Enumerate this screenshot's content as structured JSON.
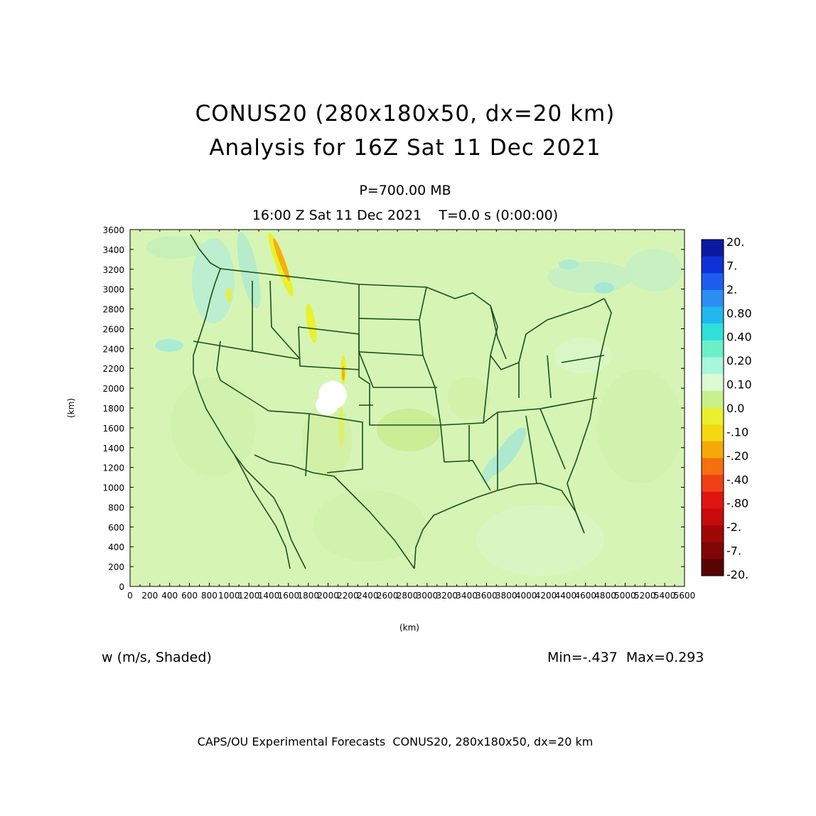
{
  "header": {
    "title_line1": "CONUS20 (280x180x50, dx=20 km)",
    "title_line2": "Analysis for 16Z Sat 11 Dec 2021",
    "level": "P=700.00 MB",
    "time": "16:00 Z Sat 11 Dec 2021    T=0.0 s (0:00:00)"
  },
  "field_label": "w (m/s, Shaded)",
  "minmax_label": "Min=-.437  Max=0.293",
  "footer": "CAPS/OU Experimental Forecasts  CONUS20, 280x180x50, dx=20 km",
  "chart_data": {
    "type": "heatmap",
    "variable": "w (m/s)",
    "xlabel": "(km)",
    "ylabel": "(km)",
    "xlim": [
      0,
      5600
    ],
    "ylim": [
      0,
      3600
    ],
    "x_ticks": [
      0,
      200,
      400,
      600,
      800,
      1000,
      1200,
      1400,
      1600,
      1800,
      2000,
      2200,
      2400,
      2600,
      2800,
      3000,
      3200,
      3400,
      3600,
      3800,
      4000,
      4200,
      4400,
      4600,
      4800,
      5000,
      5200,
      5400,
      5600
    ],
    "x_tick_labels": [
      "0",
      "200",
      "400",
      "600",
      "800",
      "1000",
      "1200",
      "1400",
      "1600",
      "1800",
      "2000",
      "2200",
      "2400",
      "2600",
      "2800",
      "3000",
      "3200",
      "3400",
      "3600",
      "3800",
      "4000",
      "4200",
      "4400",
      "4600",
      "4800",
      "5000",
      "5200",
      "5400",
      "5600"
    ],
    "y_ticks": [
      0,
      200,
      400,
      600,
      800,
      1000,
      1200,
      1400,
      1600,
      1800,
      2000,
      2200,
      2400,
      2600,
      2800,
      3000,
      3200,
      3400,
      3600
    ],
    "y_tick_labels": [
      "0",
      "200",
      "400",
      "600",
      "800",
      "1000",
      "1200",
      "1400",
      "1600",
      "1800",
      "2000",
      "2200",
      "2400",
      "2600",
      "2800",
      "3000",
      "3200",
      "3400",
      "3600"
    ],
    "colorbar": {
      "labels": [
        "20.",
        "7.",
        "2.",
        "0.80",
        "0.40",
        "0.20",
        "0.10",
        "0.0",
        "-.10",
        "-.20",
        "-.40",
        "-.80",
        "-2.",
        "-7.",
        "-20."
      ],
      "colors": [
        "#0a1aa0",
        "#1030d8",
        "#1e5cf0",
        "#2a8ef2",
        "#22b8ee",
        "#2ee0d8",
        "#6cf0c8",
        "#a8f6dc",
        "#dcfad4",
        "#c8f08c",
        "#e8f030",
        "#f6d810",
        "#f6a808",
        "#f47010",
        "#f04018",
        "#e01410",
        "#c80a0a",
        "#a00808",
        "#800606",
        "#580404"
      ]
    },
    "min": -0.437,
    "max": 0.293,
    "background_color": "#d6f5b4",
    "map_line_color": "#1a4f1a"
  }
}
